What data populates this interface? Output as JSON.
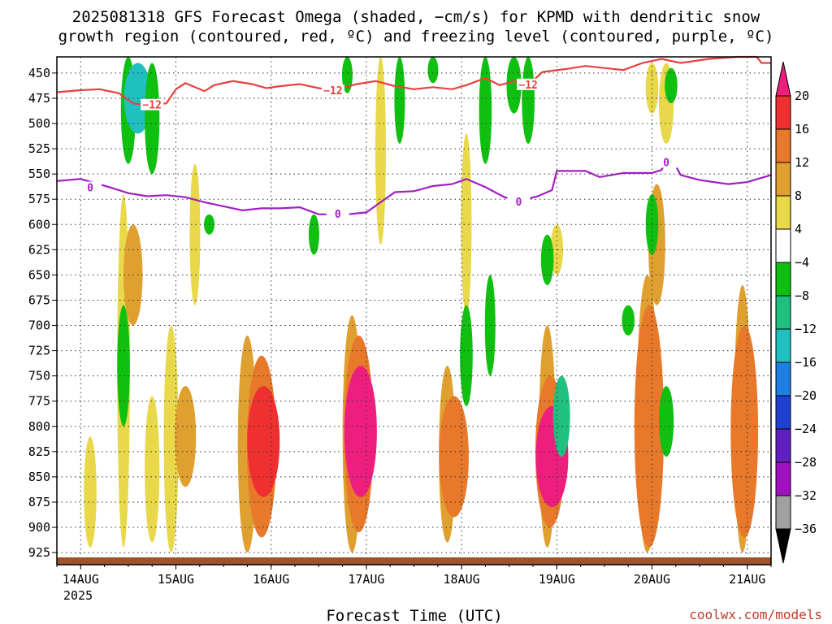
{
  "chart_data": {
    "type": "heatmap",
    "title_line1": "2025081318 GFS Forecast Omega (shaded, −cm/s) for KPMD with dendritic snow",
    "title_line2": "growth region (contoured, red, ºC) and freezing level (contoured, purple, ºC)",
    "xlabel": "Forecast Time (UTC)",
    "credit": "coolwx.com/models",
    "y_ticks": [
      450,
      475,
      500,
      525,
      550,
      575,
      600,
      625,
      650,
      675,
      700,
      725,
      750,
      775,
      800,
      825,
      850,
      875,
      900,
      925
    ],
    "x_ticks": [
      "14AUG",
      "15AUG",
      "16AUG",
      "17AUG",
      "18AUG",
      "19AUG",
      "20AUG",
      "21AUG"
    ],
    "x_year": "2025",
    "ylim": [
      937,
      434
    ],
    "xlim_days": [
      13.75,
      21.25
    ],
    "colorbar": {
      "labels": [
        "20",
        "16",
        "12",
        "8",
        "4",
        "−4",
        "−8",
        "−12",
        "−16",
        "−20",
        "−24",
        "−28",
        "−32",
        "−36"
      ],
      "colors": [
        "#ee1e7e",
        "#ee3030",
        "#e8782a",
        "#e0a030",
        "#e8d84a",
        "#ffffff",
        "#10c010",
        "#20c080",
        "#20c0c0",
        "#1e80e0",
        "#2040d0",
        "#6020c0",
        "#a010c0",
        "#a0a0a0",
        "#000000"
      ]
    },
    "contours": [
      {
        "name": "-12",
        "label": "−12",
        "color": "#e84040",
        "points": [
          [
            13.75,
            469
          ],
          [
            14.0,
            467
          ],
          [
            14.2,
            466
          ],
          [
            14.4,
            470
          ],
          [
            14.55,
            480
          ],
          [
            14.7,
            482
          ],
          [
            14.9,
            480
          ],
          [
            15.0,
            466
          ],
          [
            15.1,
            460
          ],
          [
            15.2,
            464
          ],
          [
            15.3,
            468
          ],
          [
            15.4,
            462
          ],
          [
            15.6,
            458
          ],
          [
            15.8,
            461
          ],
          [
            15.95,
            465
          ],
          [
            16.1,
            463
          ],
          [
            16.3,
            461
          ],
          [
            16.5,
            465
          ],
          [
            16.65,
            467
          ],
          [
            16.9,
            461
          ],
          [
            17.1,
            458
          ],
          [
            17.3,
            463
          ],
          [
            17.5,
            466
          ],
          [
            17.7,
            464
          ],
          [
            17.9,
            466
          ],
          [
            18.05,
            462
          ],
          [
            18.25,
            455
          ],
          [
            18.4,
            462
          ],
          [
            18.55,
            458
          ],
          [
            18.7,
            462
          ],
          [
            18.85,
            449
          ],
          [
            19.1,
            446
          ],
          [
            19.3,
            443
          ],
          [
            19.5,
            445
          ],
          [
            19.7,
            447
          ],
          [
            19.9,
            440
          ],
          [
            20.1,
            436
          ],
          [
            20.3,
            440
          ],
          [
            20.6,
            436
          ],
          [
            20.9,
            434
          ],
          [
            21.1,
            434
          ],
          [
            21.15,
            440
          ],
          [
            21.25,
            440
          ]
        ],
        "labels_at": [
          [
            14.75,
            482
          ],
          [
            16.65,
            468
          ],
          [
            18.7,
            462
          ]
        ]
      },
      {
        "name": "0",
        "label": "0",
        "color": "#a020c0",
        "points": [
          [
            13.75,
            557
          ],
          [
            14.0,
            555
          ],
          [
            14.3,
            563
          ],
          [
            14.5,
            569
          ],
          [
            14.7,
            572
          ],
          [
            14.9,
            571
          ],
          [
            15.1,
            573
          ],
          [
            15.3,
            578
          ],
          [
            15.5,
            582
          ],
          [
            15.7,
            586
          ],
          [
            15.9,
            584
          ],
          [
            16.1,
            584
          ],
          [
            16.3,
            583
          ],
          [
            16.5,
            590
          ],
          [
            16.8,
            590
          ],
          [
            17.0,
            588
          ],
          [
            17.15,
            578
          ],
          [
            17.3,
            568
          ],
          [
            17.5,
            567
          ],
          [
            17.7,
            562
          ],
          [
            17.9,
            560
          ],
          [
            18.05,
            555
          ],
          [
            18.25,
            563
          ],
          [
            18.45,
            573
          ],
          [
            18.6,
            577
          ],
          [
            18.8,
            572
          ],
          [
            18.95,
            566
          ],
          [
            19.0,
            547
          ],
          [
            19.3,
            547
          ],
          [
            19.45,
            553
          ],
          [
            19.7,
            549
          ],
          [
            20.0,
            549
          ],
          [
            20.1,
            546
          ],
          [
            20.15,
            537
          ],
          [
            20.25,
            542
          ],
          [
            20.3,
            551
          ],
          [
            20.5,
            556
          ],
          [
            20.8,
            560
          ],
          [
            21.0,
            558
          ],
          [
            21.25,
            551
          ]
        ],
        "labels_at": [
          [
            14.1,
            564
          ],
          [
            16.7,
            590
          ],
          [
            18.6,
            578
          ],
          [
            20.15,
            539
          ]
        ]
      }
    ],
    "omega_regions": [
      {
        "note": "upward motion, warm shades (cm/s)",
        "t": 14.1,
        "p_top": 810,
        "p_bot": 920,
        "value": 6
      },
      {
        "t": 14.45,
        "p_top": 570,
        "p_bot": 920,
        "value": 6
      },
      {
        "t": 14.55,
        "p_top": 600,
        "p_bot": 700,
        "value": 9
      },
      {
        "t": 14.75,
        "p_top": 770,
        "p_bot": 915,
        "value": 7
      },
      {
        "t": 14.95,
        "p_top": 700,
        "p_bot": 925,
        "value": 7
      },
      {
        "t": 15.1,
        "p_top": 760,
        "p_bot": 860,
        "value": 10
      },
      {
        "t": 15.2,
        "p_top": 540,
        "p_bot": 680,
        "value": 5
      },
      {
        "t": 15.75,
        "p_top": 710,
        "p_bot": 925,
        "value": 9
      },
      {
        "t": 15.9,
        "p_top": 730,
        "p_bot": 910,
        "value": 14
      },
      {
        "t": 15.92,
        "p_top": 760,
        "p_bot": 870,
        "value": 17
      },
      {
        "t": 16.85,
        "p_top": 690,
        "p_bot": 925,
        "value": 9
      },
      {
        "t": 16.92,
        "p_top": 710,
        "p_bot": 905,
        "value": 14
      },
      {
        "t": 16.94,
        "p_top": 740,
        "p_bot": 870,
        "value": 22
      },
      {
        "t": 17.15,
        "p_top": 430,
        "p_bot": 620,
        "value": 5
      },
      {
        "t": 17.85,
        "p_top": 740,
        "p_bot": 915,
        "value": 8
      },
      {
        "t": 17.92,
        "p_top": 770,
        "p_bot": 890,
        "value": 14
      },
      {
        "t": 18.05,
        "p_top": 510,
        "p_bot": 690,
        "value": 5
      },
      {
        "t": 18.9,
        "p_top": 700,
        "p_bot": 920,
        "value": 8
      },
      {
        "t": 18.93,
        "p_top": 750,
        "p_bot": 900,
        "value": 14
      },
      {
        "t": 18.95,
        "p_top": 780,
        "p_bot": 880,
        "value": 22
      },
      {
        "t": 19.0,
        "p_top": 600,
        "p_bot": 650,
        "value": 6
      },
      {
        "t": 19.95,
        "p_top": 650,
        "p_bot": 925,
        "value": 10
      },
      {
        "t": 19.97,
        "p_top": 680,
        "p_bot": 920,
        "value": 14
      },
      {
        "t": 20.05,
        "p_top": 560,
        "p_bot": 680,
        "value": 8
      },
      {
        "t": 20.0,
        "p_top": 440,
        "p_bot": 490,
        "value": 6
      },
      {
        "t": 20.15,
        "p_top": 440,
        "p_bot": 520,
        "value": 7
      },
      {
        "t": 20.95,
        "p_top": 660,
        "p_bot": 925,
        "value": 8
      },
      {
        "t": 20.97,
        "p_top": 700,
        "p_bot": 910,
        "value": 13
      },
      {
        "note": "downward motion, green/cyan shades (cm/s)",
        "t": 14.5,
        "p_top": 434,
        "p_bot": 540,
        "value": -7
      },
      {
        "t": 14.6,
        "p_top": 440,
        "p_bot": 510,
        "value": -13
      },
      {
        "t": 14.75,
        "p_top": 440,
        "p_bot": 550,
        "value": -7
      },
      {
        "t": 14.45,
        "p_top": 680,
        "p_bot": 800,
        "value": -6
      },
      {
        "t": 15.35,
        "p_top": 590,
        "p_bot": 610,
        "value": -5
      },
      {
        "t": 16.45,
        "p_top": 590,
        "p_bot": 630,
        "value": -5
      },
      {
        "t": 16.8,
        "p_top": 434,
        "p_bot": 470,
        "value": -5
      },
      {
        "t": 17.7,
        "p_top": 434,
        "p_bot": 460,
        "value": -5
      },
      {
        "t": 18.25,
        "p_top": 434,
        "p_bot": 540,
        "value": -6
      },
      {
        "t": 18.55,
        "p_top": 434,
        "p_bot": 490,
        "value": -7
      },
      {
        "t": 18.7,
        "p_top": 434,
        "p_bot": 520,
        "value": -6
      },
      {
        "t": 17.35,
        "p_top": 434,
        "p_bot": 520,
        "value": -5
      },
      {
        "t": 18.05,
        "p_top": 680,
        "p_bot": 780,
        "value": -6
      },
      {
        "t": 18.3,
        "p_top": 650,
        "p_bot": 750,
        "value": -5
      },
      {
        "t": 18.9,
        "p_top": 610,
        "p_bot": 660,
        "value": -6
      },
      {
        "t": 19.05,
        "p_top": 750,
        "p_bot": 830,
        "value": -8
      },
      {
        "t": 19.75,
        "p_top": 680,
        "p_bot": 710,
        "value": -6
      },
      {
        "t": 20.0,
        "p_top": 570,
        "p_bot": 630,
        "value": -6
      },
      {
        "t": 20.15,
        "p_top": 760,
        "p_bot": 830,
        "value": -7
      },
      {
        "t": 20.2,
        "p_top": 445,
        "p_bot": 480,
        "value": -6
      }
    ]
  }
}
